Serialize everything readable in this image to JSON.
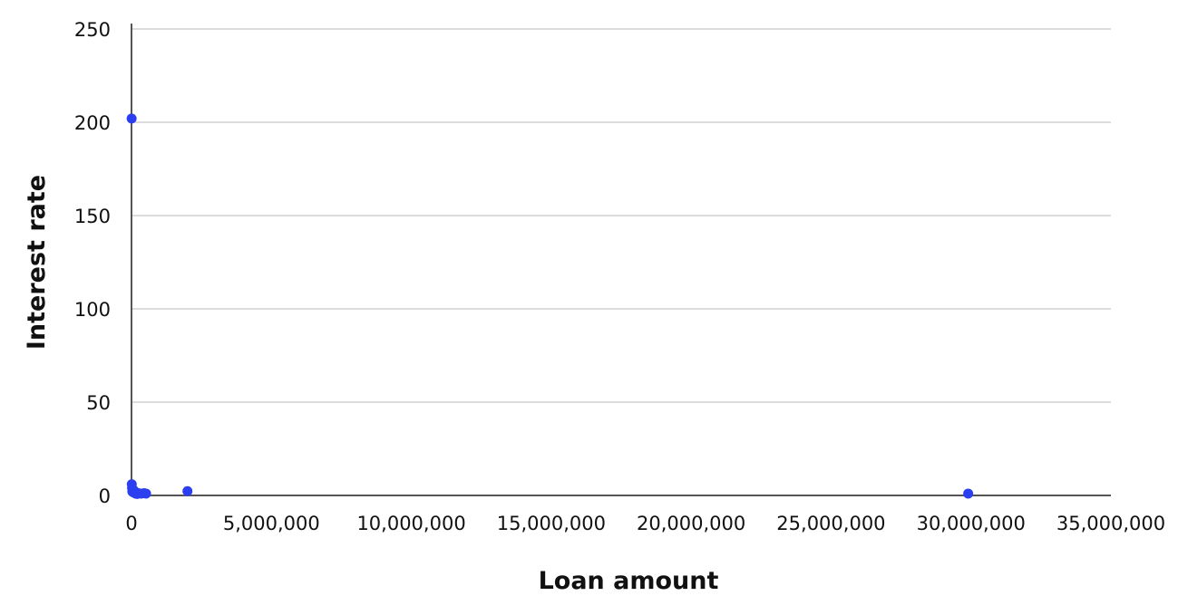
{
  "chart_data": {
    "type": "scatter",
    "xlabel": "Loan amount",
    "ylabel": "Interest rate",
    "xlim": [
      0,
      35000000
    ],
    "ylim": [
      0,
      250
    ],
    "x_ticks": [
      0,
      5000000,
      10000000,
      15000000,
      20000000,
      25000000,
      30000000,
      35000000
    ],
    "x_tick_labels": [
      "0",
      "5,000,000",
      "10,000,000",
      "15,000,000",
      "20,000,000",
      "25,000,000",
      "30,000,000",
      "35,000,000"
    ],
    "y_ticks": [
      0,
      50,
      100,
      150,
      200,
      250
    ],
    "y_tick_labels": [
      "0",
      "50",
      "100",
      "150",
      "200",
      "250"
    ],
    "grid": "horizontal",
    "legend": "none",
    "marker_color": "#2b3ff0",
    "points": [
      {
        "x": 5000,
        "y": 202
      },
      {
        "x": 10000,
        "y": 6
      },
      {
        "x": 20000,
        "y": 4
      },
      {
        "x": 30000,
        "y": 2
      },
      {
        "x": 50000,
        "y": 3
      },
      {
        "x": 80000,
        "y": 1.5
      },
      {
        "x": 100000,
        "y": 2.5
      },
      {
        "x": 150000,
        "y": 1
      },
      {
        "x": 200000,
        "y": 0.8
      },
      {
        "x": 250000,
        "y": 1.2
      },
      {
        "x": 350000,
        "y": 1
      },
      {
        "x": 450000,
        "y": 1.2
      },
      {
        "x": 520000,
        "y": 1
      },
      {
        "x": 2000000,
        "y": 2.3
      },
      {
        "x": 29900000,
        "y": 1
      }
    ]
  }
}
